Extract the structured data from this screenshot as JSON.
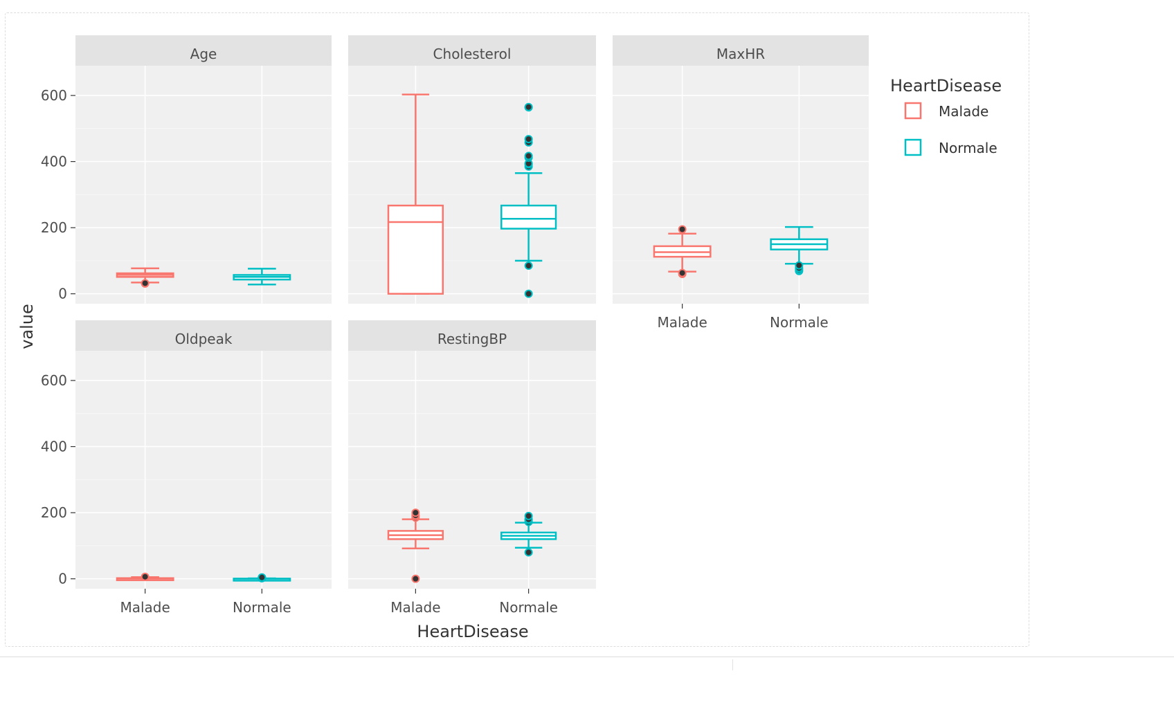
{
  "chart_data": {
    "type": "box",
    "facet_by": "variable",
    "xlabel": "HeartDisease",
    "ylabel": "value",
    "ylim": [
      -30,
      690
    ],
    "yticks": [
      0,
      200,
      400,
      600
    ],
    "categories": [
      "Malade",
      "Normale"
    ],
    "colors": {
      "Malade": "#F8766D",
      "Normale": "#00BFC4"
    },
    "legend": {
      "title": "HeartDisease",
      "position": "right",
      "entries": [
        {
          "label": "Malade",
          "color": "#F8766D"
        },
        {
          "label": "Normale",
          "color": "#00BFC4"
        }
      ]
    },
    "grid": true,
    "panels": [
      {
        "title": "Age",
        "boxes": [
          {
            "group": "Malade",
            "min": 34,
            "q1": 51,
            "median": 57,
            "q3": 62,
            "max": 77,
            "outliers": [
              31,
              32
            ]
          },
          {
            "group": "Normale",
            "min": 28,
            "q1": 43,
            "median": 51,
            "q3": 57,
            "max": 76,
            "outliers": []
          }
        ]
      },
      {
        "title": "Cholesterol",
        "boxes": [
          {
            "group": "Malade",
            "min": 0,
            "q1": 0,
            "median": 217,
            "q3": 267,
            "max": 603,
            "outliers": []
          },
          {
            "group": "Normale",
            "min": 100,
            "q1": 197,
            "median": 227,
            "q3": 267,
            "max": 365,
            "outliers": [
              0,
              85,
              385,
              392,
              394,
              412,
              417,
              458,
              468,
              564,
              565
            ]
          }
        ]
      },
      {
        "title": "MaxHR",
        "boxes": [
          {
            "group": "Malade",
            "min": 67,
            "q1": 112,
            "median": 126,
            "q3": 144,
            "max": 182,
            "outliers": [
              60,
              63,
              195
            ]
          },
          {
            "group": "Normale",
            "min": 91,
            "q1": 134,
            "median": 150,
            "q3": 165,
            "max": 202,
            "outliers": [
              69,
              73,
              78,
              86
            ]
          }
        ]
      },
      {
        "title": "Oldpeak",
        "boxes": [
          {
            "group": "Malade",
            "min": -2.6,
            "q1": 0,
            "median": 1.2,
            "q3": 2,
            "max": 5,
            "outliers": [
              5.6,
              6.2
            ]
          },
          {
            "group": "Normale",
            "min": -1.1,
            "q1": 0,
            "median": 0,
            "q3": 0.6,
            "max": 1.5,
            "outliers": [
              1.6,
              2,
              2.5,
              3,
              3.5,
              4.2
            ]
          }
        ]
      },
      {
        "title": "RestingBP",
        "boxes": [
          {
            "group": "Malade",
            "min": 92,
            "q1": 120,
            "median": 132,
            "q3": 145,
            "max": 180,
            "outliers": [
              0,
              185,
              190,
              192,
              200
            ]
          },
          {
            "group": "Normale",
            "min": 94,
            "q1": 120,
            "median": 130,
            "q3": 140,
            "max": 170,
            "outliers": [
              80,
              172,
              178,
              180,
              190
            ]
          }
        ]
      }
    ]
  }
}
